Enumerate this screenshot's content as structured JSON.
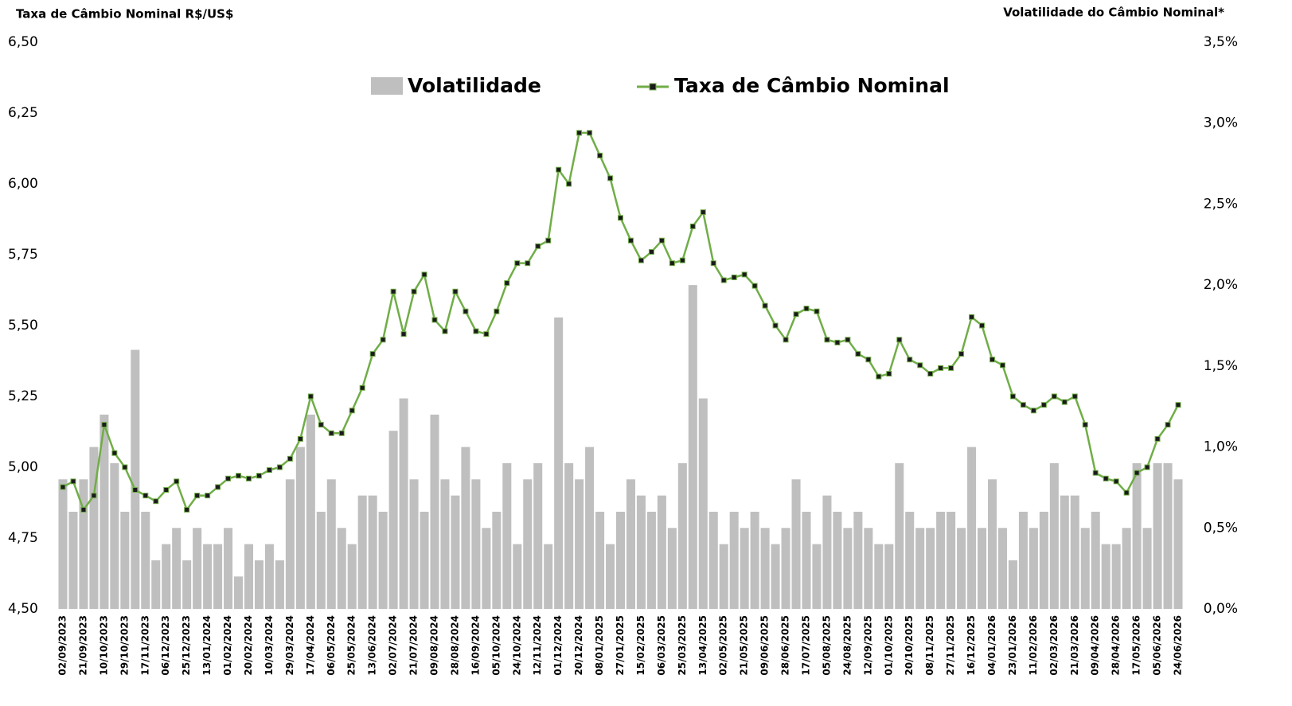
{
  "chart_data": {
    "type": "bar-line",
    "y_axis_title": "Taxa de Câmbio Nominal R$/US$",
    "y2_axis_title": "Volatilidade do Câmbio Nominal*",
    "categories": [
      "02/09/2023",
      null,
      "21/09/2023",
      null,
      "10/10/2023",
      null,
      "29/10/2023",
      null,
      "17/11/2023",
      null,
      "06/12/2023",
      null,
      "25/12/2023",
      null,
      "13/01/2024",
      null,
      "01/02/2024",
      null,
      "20/02/2024",
      null,
      "10/03/2024",
      null,
      "29/03/2024",
      null,
      "17/04/2024",
      null,
      "06/05/2024",
      null,
      "25/05/2024",
      null,
      "13/06/2024",
      null,
      "02/07/2024",
      null,
      "21/07/2024",
      null,
      "09/08/2024",
      null,
      "28/08/2024",
      null,
      "16/09/2024",
      null,
      "05/10/2024",
      null,
      "24/10/2024",
      null,
      "12/11/2024",
      null,
      "01/12/2024",
      null,
      "20/12/2024",
      null,
      "08/01/2025",
      null,
      "27/01/2025",
      null,
      "15/02/2025",
      null,
      "06/03/2025",
      null,
      "25/03/2025",
      null,
      "13/04/2025",
      null,
      "02/05/2025",
      null,
      "21/05/2025",
      null,
      "09/06/2025",
      null,
      "28/06/2025",
      null,
      "17/07/2025",
      null,
      "05/08/2025",
      null,
      "24/08/2025",
      null,
      "12/09/2025",
      null,
      "01/10/2025",
      null,
      "20/10/2025",
      null,
      "08/11/2025",
      null,
      "27/11/2025",
      null,
      "16/12/2025",
      null,
      "04/01/2026",
      null,
      "23/01/2026",
      null,
      "11/02/2026",
      null,
      "02/03/2026",
      null,
      "21/03/2026",
      null,
      "09/04/2026",
      null,
      "28/04/2026",
      null,
      "17/05/2026",
      null,
      "05/06/2026",
      null,
      "24/06/2026"
    ],
    "series": [
      {
        "name": "Volatilidade",
        "type": "bar",
        "axis": "y2",
        "color": "#bfbfbf",
        "values": [
          0.8,
          0.6,
          0.8,
          1.0,
          1.2,
          0.9,
          0.6,
          1.6,
          0.6,
          0.3,
          0.4,
          0.5,
          0.3,
          0.5,
          0.4,
          0.4,
          0.5,
          0.2,
          0.4,
          0.3,
          0.4,
          0.3,
          0.8,
          1.0,
          1.2,
          0.6,
          0.8,
          0.5,
          0.4,
          0.7,
          0.7,
          0.6,
          1.1,
          1.3,
          0.8,
          0.6,
          1.2,
          0.8,
          0.7,
          1.0,
          0.8,
          0.5,
          0.6,
          0.9,
          0.4,
          0.8,
          0.9,
          0.4,
          1.8,
          0.9,
          0.8,
          1.0,
          0.6,
          0.4,
          0.6,
          0.8,
          0.7,
          0.6,
          0.7,
          0.5,
          0.9,
          2.0,
          1.3,
          0.6,
          0.4,
          0.6,
          0.5,
          0.6,
          0.5,
          0.4,
          0.5,
          0.8,
          0.6,
          0.4,
          0.7,
          0.6,
          0.5,
          0.6,
          0.5,
          0.4,
          0.4,
          0.9,
          0.6,
          0.5,
          0.5,
          0.6,
          0.6,
          0.5,
          1.0,
          0.5,
          0.8,
          0.5,
          0.3,
          0.6,
          0.5,
          0.6,
          0.9,
          0.7,
          0.7,
          0.5,
          0.6,
          0.4,
          0.4,
          0.5,
          0.9,
          0.5,
          0.9,
          0.9,
          0.8
        ]
      },
      {
        "name": "Taxa de Câmbio Nominal",
        "type": "line",
        "axis": "y",
        "color": "#70ad47",
        "values": [
          4.93,
          4.95,
          4.85,
          4.9,
          5.15,
          5.05,
          5.0,
          4.92,
          4.9,
          4.88,
          4.92,
          4.95,
          4.85,
          4.9,
          4.9,
          4.93,
          4.96,
          4.97,
          4.96,
          4.97,
          4.99,
          5.0,
          5.03,
          5.1,
          5.25,
          5.15,
          5.12,
          5.12,
          5.2,
          5.28,
          5.4,
          5.45,
          5.62,
          5.47,
          5.62,
          5.68,
          5.52,
          5.48,
          5.62,
          5.55,
          5.48,
          5.47,
          5.55,
          5.65,
          5.72,
          5.72,
          5.78,
          5.8,
          6.05,
          6.0,
          6.18,
          6.18,
          6.1,
          6.02,
          5.88,
          5.8,
          5.73,
          5.76,
          5.8,
          5.72,
          5.73,
          5.85,
          5.9,
          5.72,
          5.66,
          5.67,
          5.68,
          5.64,
          5.57,
          5.5,
          5.45,
          5.54,
          5.56,
          5.55,
          5.45,
          5.44,
          5.45,
          5.4,
          5.38,
          5.32,
          5.33,
          5.45,
          5.38,
          5.36,
          5.33,
          5.35,
          5.35,
          5.4,
          5.53,
          5.5,
          5.38,
          5.36,
          5.25,
          5.22,
          5.2,
          5.22,
          5.25,
          5.23,
          5.25,
          5.15,
          4.98,
          4.96,
          4.95,
          4.91,
          4.98,
          5.0,
          5.1,
          5.15,
          5.22
        ]
      }
    ],
    "ylim": [
      4.5,
      6.5
    ],
    "yticks": [
      {
        "value": 4.5,
        "label": "4,50"
      },
      {
        "value": 4.75,
        "label": "4,75"
      },
      {
        "value": 5,
        "label": "5,00"
      },
      {
        "value": 5.25,
        "label": "5,25"
      },
      {
        "value": 5.5,
        "label": "5,50"
      },
      {
        "value": 5.75,
        "label": "5,75"
      },
      {
        "value": 6,
        "label": "6,00"
      },
      {
        "value": 6.25,
        "label": "6,25"
      },
      {
        "value": 6.5,
        "label": "6,50"
      }
    ],
    "y2lim": [
      0,
      3.5
    ],
    "y2ticks": [
      {
        "value": 0,
        "label": "0,0%"
      },
      {
        "value": 0.5,
        "label": "0,5%"
      },
      {
        "value": 1,
        "label": "1,0%"
      },
      {
        "value": 1.5,
        "label": "1,5%"
      },
      {
        "value": 2,
        "label": "2,0%"
      },
      {
        "value": 2.5,
        "label": "2,5%"
      },
      {
        "value": 3,
        "label": "3,0%"
      },
      {
        "value": 3.5,
        "label": "3,5%"
      }
    ]
  }
}
